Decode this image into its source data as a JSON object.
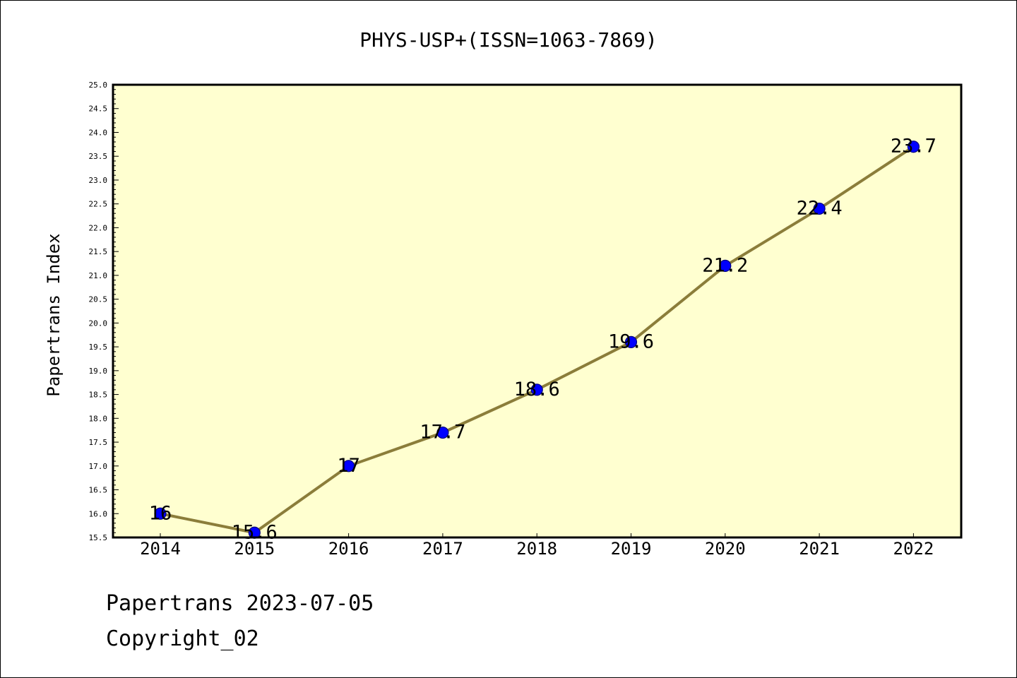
{
  "chart_data": {
    "type": "line",
    "title": "PHYS-USP+(ISSN=1063-7869)",
    "xlabel": "",
    "ylabel": "Papertrans Index",
    "categories": [
      "2014",
      "2015",
      "2016",
      "2017",
      "2018",
      "2019",
      "2020",
      "2021",
      "2022"
    ],
    "values": [
      16,
      15.6,
      17,
      17.7,
      18.6,
      19.6,
      21.2,
      22.4,
      23.7
    ],
    "value_labels": [
      "16",
      "15.6",
      "17",
      "17.7",
      "18.6",
      "19.6",
      "21.2",
      "22.4",
      "23.7"
    ],
    "ylim": [
      15.5,
      25.0
    ],
    "yticks": [
      "15.5",
      "16.0",
      "16.5",
      "17.0",
      "17.5",
      "18.0",
      "18.5",
      "19.0",
      "19.5",
      "20.0",
      "20.5",
      "21.0",
      "21.5",
      "22.0",
      "22.5",
      "23.0",
      "23.5",
      "24.0",
      "24.5",
      "25.0"
    ],
    "grid": false,
    "colors": {
      "plot_background": "#ffffd0",
      "line": "#8b7d3a",
      "marker_fill": "#0000ff",
      "marker_edge": "#000080"
    }
  },
  "footer": {
    "line1": "Papertrans 2023-07-05",
    "line2": "Copyright_02"
  }
}
